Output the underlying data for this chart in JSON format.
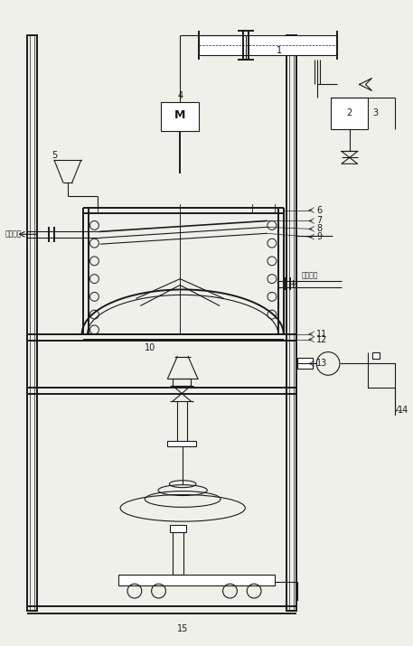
{
  "bg_color": "#f0f0eb",
  "line_color": "#1a1a1a",
  "lw": 0.8,
  "lw_thick": 1.4,
  "chinese_left": "热分质出",
  "chinese_right": "助分质进"
}
